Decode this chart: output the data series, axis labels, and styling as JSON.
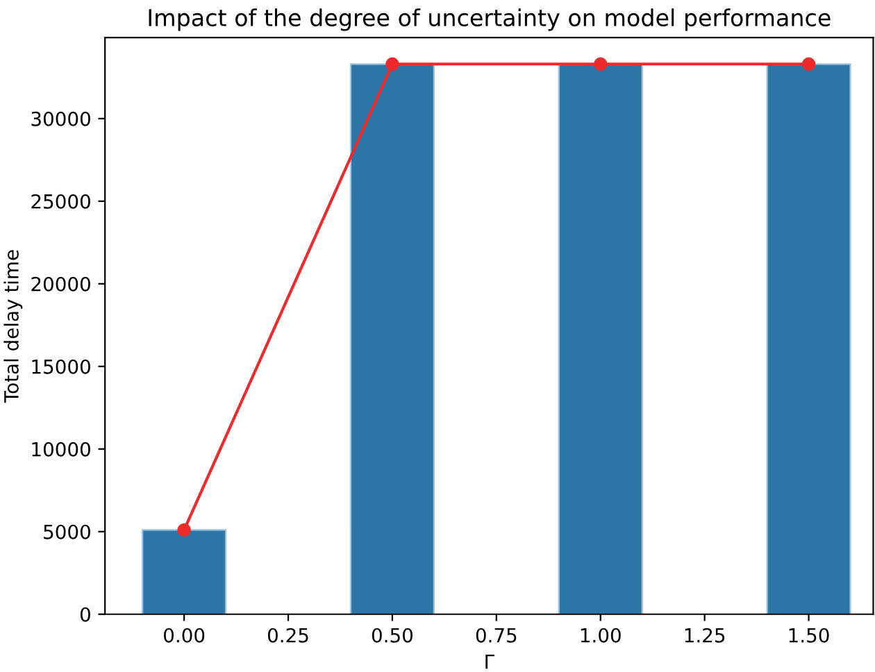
{
  "chart_data": {
    "type": "bar",
    "title": "Impact of the degree of uncertainty on model performance",
    "xlabel": "Γ",
    "ylabel": "Total delay time",
    "x": [
      0.0,
      0.5,
      1.0,
      1.5
    ],
    "series": [
      {
        "color": "#2c76a8",
        "values": [
          5100,
          33300,
          33300,
          33300
        ]
      },
      {
        "type": "line",
        "color": "#ee2a2a",
        "values": [
          5100,
          33300,
          33300,
          33300
        ],
        "marker": "circle",
        "line_style": "solid"
      }
    ],
    "xlim": [
      -0.19,
      1.655
    ],
    "xticks": [
      {
        "value": 0,
        "label": "0.00"
      },
      {
        "value": 0.25,
        "label": "0.25"
      },
      {
        "value": 0.5,
        "label": "0.50"
      },
      {
        "value": 0.75,
        "label": "0.75"
      },
      {
        "value": 1.0,
        "label": "1.00"
      },
      {
        "value": 1.25,
        "label": "1.25"
      },
      {
        "value": 1.5,
        "label": "1.50"
      }
    ],
    "ylim": [
      0,
      34900
    ],
    "yticks": [
      0,
      5000,
      10000,
      15000,
      20000,
      25000,
      30000
    ],
    "grid": false
  }
}
